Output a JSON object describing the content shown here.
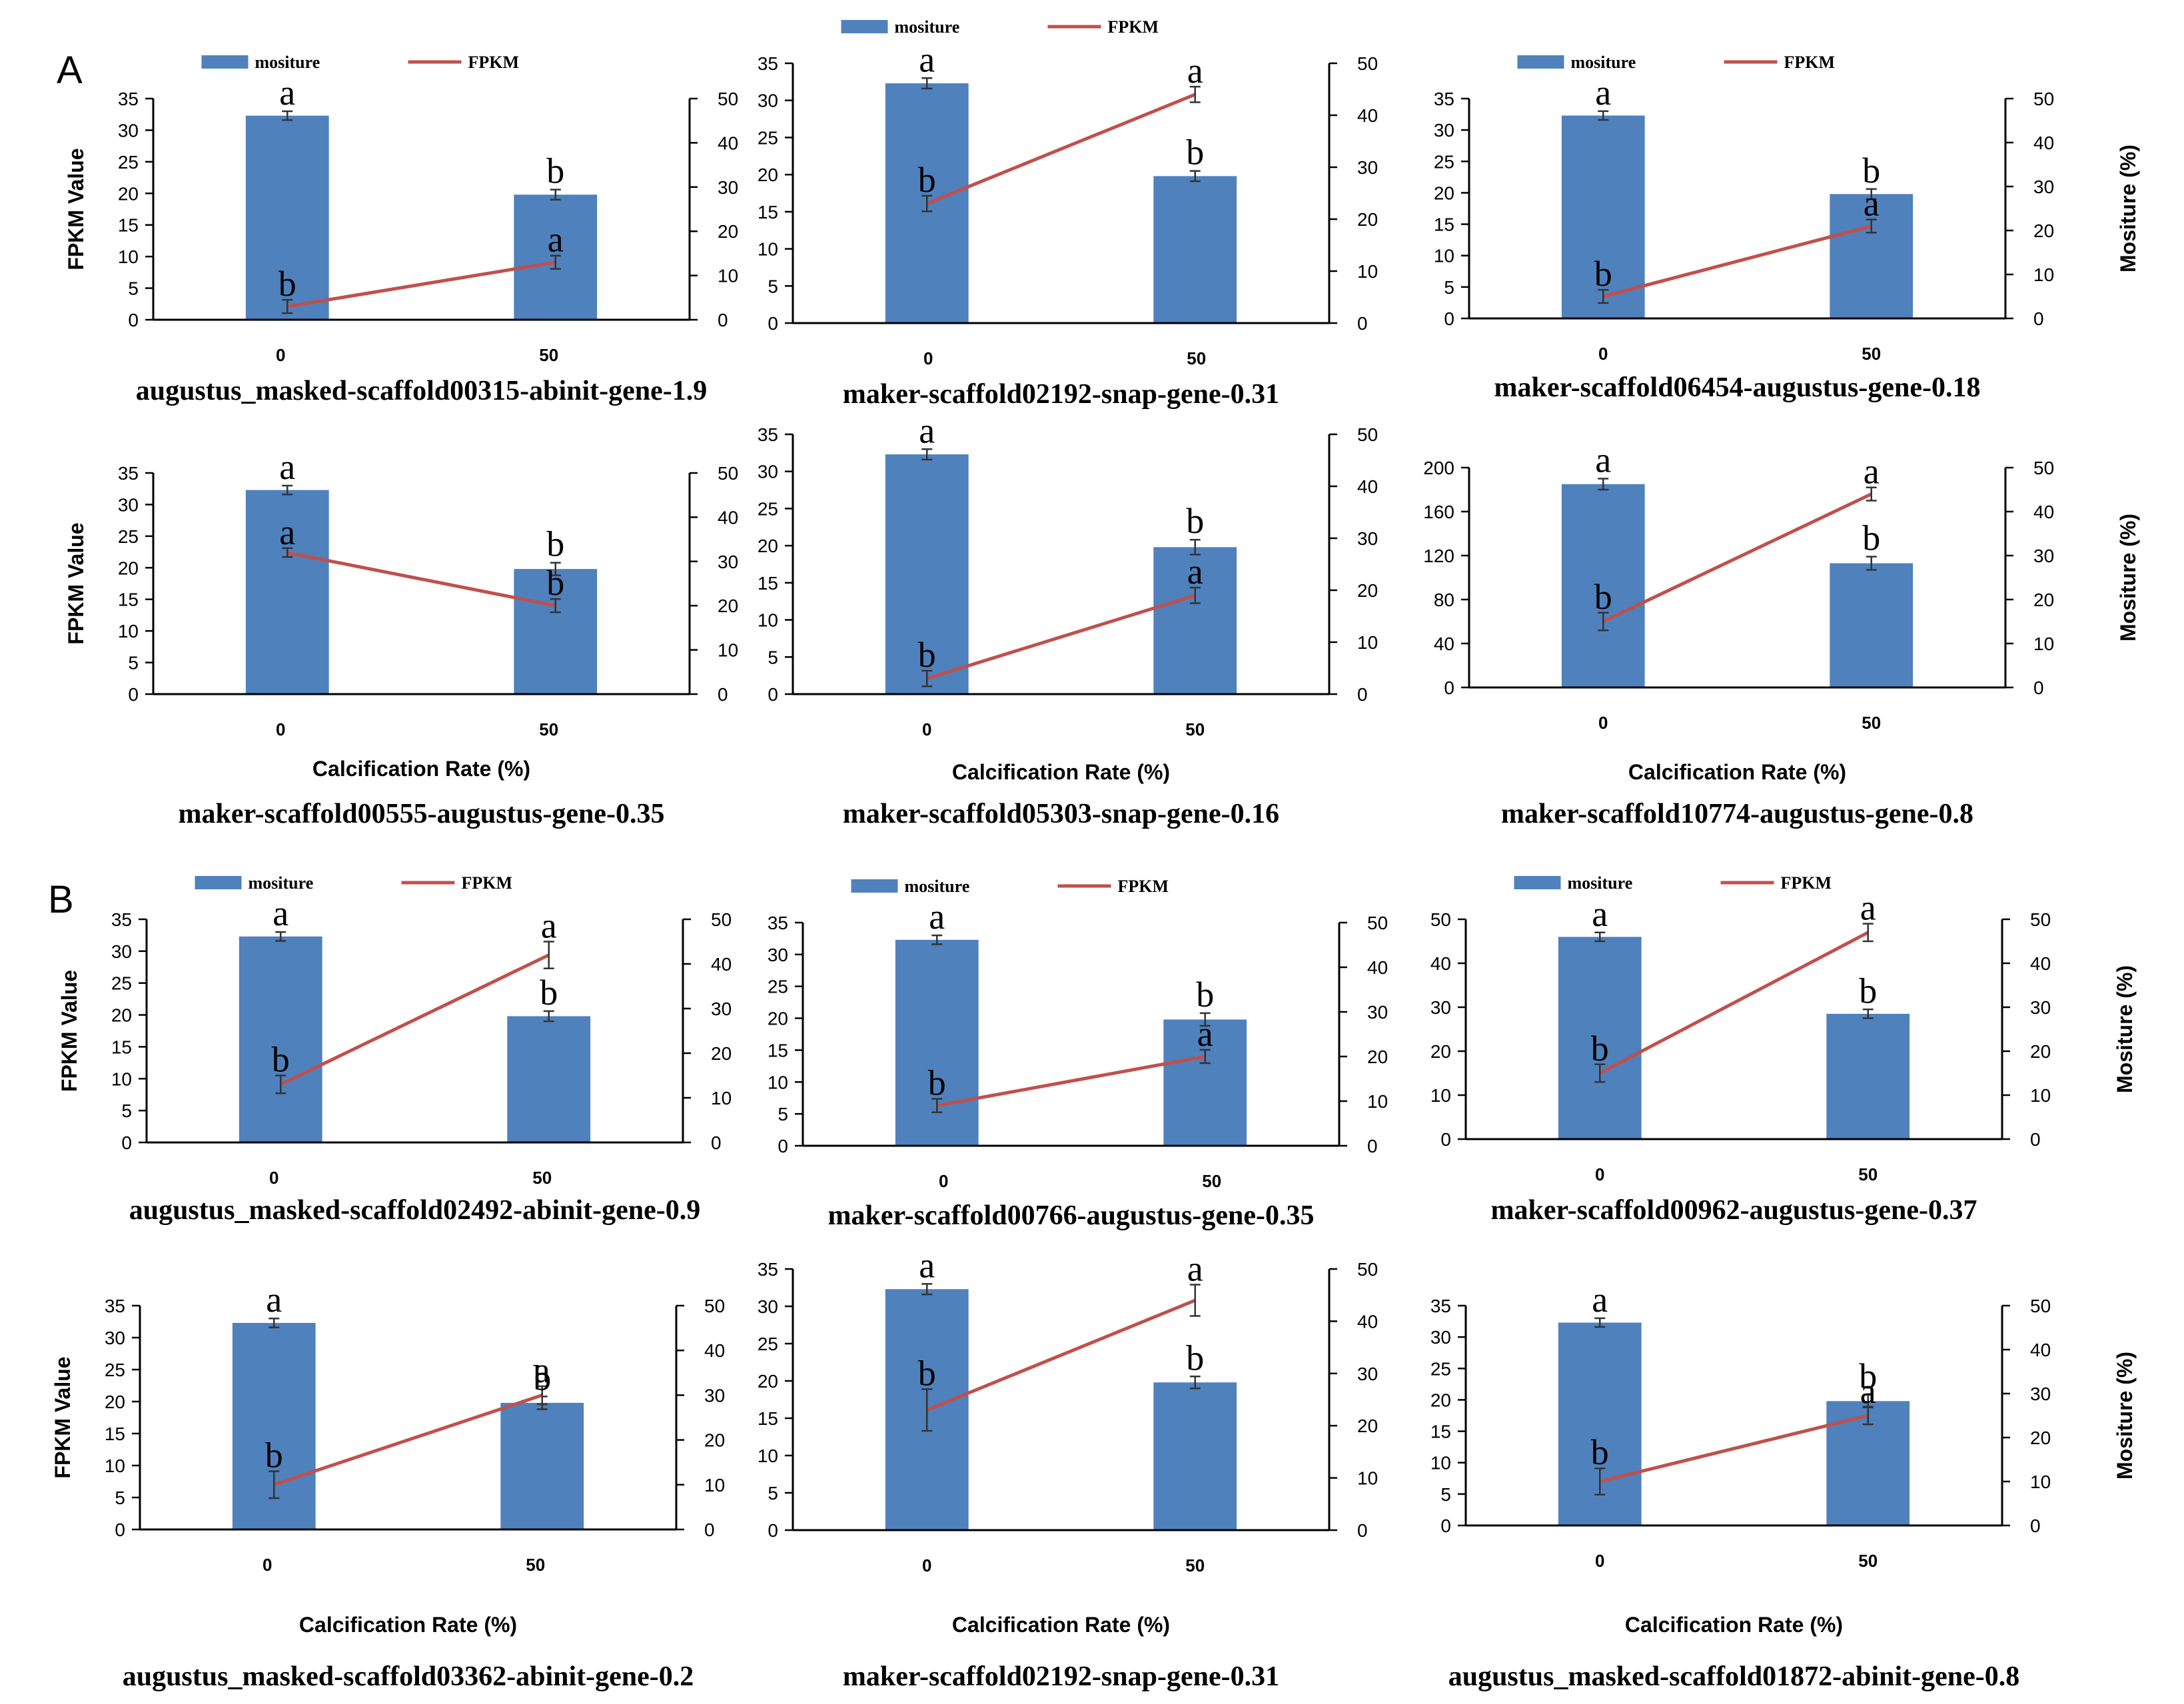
{
  "figure": {
    "section_labels": [
      "A",
      "B"
    ],
    "legend": {
      "bar_label": "mositure",
      "line_label": "FPKM"
    },
    "x_axis_title": "Calcification Rate (%)",
    "y_left_title": "FPKM Value",
    "y_right_title": "Mositure (%)",
    "colors": {
      "bar": "#4f81bd",
      "line": "#c0504d",
      "axis": "#000000"
    }
  },
  "chart_data": [
    {
      "type": "bar+line",
      "section": "A",
      "title": "augustus_masked-scaffold00315-abinit-gene-1.9",
      "categories": [
        "0",
        "50"
      ],
      "series": [
        {
          "name": "mositure",
          "values": [
            32.3,
            19.8
          ],
          "errors": [
            0.7,
            0.8
          ],
          "letters": [
            "a",
            "b"
          ],
          "axis": "left"
        },
        {
          "name": "FPKM",
          "values": [
            3,
            13
          ],
          "errors": [
            1.5,
            1.5
          ],
          "letters": [
            "b",
            "a"
          ],
          "axis": "right"
        }
      ],
      "ylim_left": [
        0,
        35
      ],
      "ylim_right": [
        0,
        50
      ],
      "yticks_left": [
        0,
        5,
        10,
        15,
        20,
        25,
        30,
        35
      ],
      "yticks_right": [
        0,
        10,
        20,
        30,
        40,
        50
      ],
      "show_legend": true,
      "show_xlabel": false,
      "show_left_title": true,
      "show_right_title": false
    },
    {
      "type": "bar+line",
      "section": "A",
      "title": "maker-scaffold02192-snap-gene-0.31",
      "categories": [
        "0",
        "50"
      ],
      "series": [
        {
          "name": "mositure",
          "values": [
            32.3,
            19.8
          ],
          "errors": [
            0.7,
            0.7
          ],
          "letters": [
            "a",
            "b"
          ],
          "axis": "left"
        },
        {
          "name": "FPKM",
          "values": [
            23,
            44
          ],
          "errors": [
            1.5,
            1.5
          ],
          "letters": [
            "b",
            "a"
          ],
          "axis": "right"
        }
      ],
      "ylim_left": [
        0,
        35
      ],
      "ylim_right": [
        0,
        50
      ],
      "yticks_left": [
        0,
        5,
        10,
        15,
        20,
        25,
        30,
        35
      ],
      "yticks_right": [
        0,
        10,
        20,
        30,
        40,
        50
      ],
      "show_legend": true,
      "show_xlabel": false,
      "show_left_title": false,
      "show_right_title": false
    },
    {
      "type": "bar+line",
      "section": "A",
      "title": "maker-scaffold06454-augustus-gene-0.18",
      "categories": [
        "0",
        "50"
      ],
      "series": [
        {
          "name": "mositure",
          "values": [
            32.3,
            19.8
          ],
          "errors": [
            0.7,
            0.8
          ],
          "letters": [
            "a",
            "b"
          ],
          "axis": "left"
        },
        {
          "name": "FPKM",
          "values": [
            5,
            21
          ],
          "errors": [
            1.5,
            1.5
          ],
          "letters": [
            "b",
            "a"
          ],
          "axis": "right"
        }
      ],
      "ylim_left": [
        0,
        35
      ],
      "ylim_right": [
        0,
        50
      ],
      "yticks_left": [
        0,
        5,
        10,
        15,
        20,
        25,
        30,
        35
      ],
      "yticks_right": [
        0,
        10,
        20,
        30,
        40,
        50
      ],
      "show_legend": true,
      "show_xlabel": false,
      "show_left_title": false,
      "show_right_title": true
    },
    {
      "type": "bar+line",
      "section": "A",
      "title": "maker-scaffold00555-augustus-gene-0.35",
      "categories": [
        "0",
        "50"
      ],
      "series": [
        {
          "name": "mositure",
          "values": [
            32.3,
            19.8
          ],
          "errors": [
            0.7,
            1
          ],
          "letters": [
            "a",
            "b"
          ],
          "axis": "left"
        },
        {
          "name": "FPKM",
          "values": [
            32,
            20
          ],
          "errors": [
            1,
            1.5
          ],
          "letters": [
            "a",
            "b"
          ],
          "axis": "right"
        }
      ],
      "ylim_left": [
        0,
        35
      ],
      "ylim_right": [
        0,
        50
      ],
      "yticks_left": [
        0,
        5,
        10,
        15,
        20,
        25,
        30,
        35
      ],
      "yticks_right": [
        0,
        10,
        20,
        30,
        40,
        50
      ],
      "show_legend": false,
      "show_xlabel": true,
      "show_left_title": true,
      "show_right_title": false
    },
    {
      "type": "bar+line",
      "section": "A",
      "title": "maker-scaffold05303-snap-gene-0.16",
      "categories": [
        "0",
        "50"
      ],
      "series": [
        {
          "name": "mositure",
          "values": [
            32.3,
            19.8
          ],
          "errors": [
            0.7,
            1
          ],
          "letters": [
            "a",
            "b"
          ],
          "axis": "left"
        },
        {
          "name": "FPKM",
          "values": [
            3,
            19
          ],
          "errors": [
            1.5,
            1.5
          ],
          "letters": [
            "b",
            "a"
          ],
          "axis": "right"
        }
      ],
      "ylim_left": [
        0,
        35
      ],
      "ylim_right": [
        0,
        50
      ],
      "yticks_left": [
        0,
        5,
        10,
        15,
        20,
        25,
        30,
        35
      ],
      "yticks_right": [
        0,
        10,
        20,
        30,
        40,
        50
      ],
      "show_legend": false,
      "show_xlabel": true,
      "show_left_title": false,
      "show_right_title": false
    },
    {
      "type": "bar+line",
      "section": "A",
      "title": "maker-scaffold10774-augustus-gene-0.8",
      "categories": [
        "0",
        "50"
      ],
      "series": [
        {
          "name": "mositure",
          "values": [
            185,
            113
          ],
          "errors": [
            5,
            6
          ],
          "letters": [
            "a",
            "b"
          ],
          "axis": "left"
        },
        {
          "name": "FPKM",
          "values": [
            15,
            44
          ],
          "errors": [
            2,
            1.5
          ],
          "letters": [
            "b",
            "a"
          ],
          "axis": "right"
        }
      ],
      "ylim_left": [
        0,
        200
      ],
      "ylim_right": [
        0,
        50
      ],
      "yticks_left": [
        0,
        40,
        80,
        120,
        160,
        200
      ],
      "yticks_right": [
        0,
        10,
        20,
        30,
        40,
        50
      ],
      "show_legend": false,
      "show_xlabel": true,
      "show_left_title": false,
      "show_right_title": true
    },
    {
      "type": "bar+line",
      "section": "B",
      "title": "augustus_masked-scaffold02492-abinit-gene-0.9",
      "categories": [
        "0",
        "50"
      ],
      "series": [
        {
          "name": "mositure",
          "values": [
            32.3,
            19.8
          ],
          "errors": [
            0.7,
            0.8
          ],
          "letters": [
            "a",
            "b"
          ],
          "axis": "left"
        },
        {
          "name": "FPKM",
          "values": [
            13,
            42
          ],
          "errors": [
            2,
            3
          ],
          "letters": [
            "b",
            "a"
          ],
          "axis": "right"
        }
      ],
      "ylim_left": [
        0,
        35
      ],
      "ylim_right": [
        0,
        50
      ],
      "yticks_left": [
        0,
        5,
        10,
        15,
        20,
        25,
        30,
        35
      ],
      "yticks_right": [
        0,
        10,
        20,
        30,
        40,
        50
      ],
      "show_legend": true,
      "show_xlabel": false,
      "show_left_title": true,
      "show_right_title": false
    },
    {
      "type": "bar+line",
      "section": "B",
      "title": "maker-scaffold00766-augustus-gene-0.35",
      "categories": [
        "0",
        "50"
      ],
      "series": [
        {
          "name": "mositure",
          "values": [
            32.3,
            19.8
          ],
          "errors": [
            0.7,
            1
          ],
          "letters": [
            "a",
            "b"
          ],
          "axis": "left"
        },
        {
          "name": "FPKM",
          "values": [
            9,
            20
          ],
          "errors": [
            1.5,
            1.5
          ],
          "letters": [
            "b",
            "a"
          ],
          "axis": "right"
        }
      ],
      "ylim_left": [
        0,
        35
      ],
      "ylim_right": [
        0,
        50
      ],
      "yticks_left": [
        0,
        5,
        10,
        15,
        20,
        25,
        30,
        35
      ],
      "yticks_right": [
        0,
        10,
        20,
        30,
        40,
        50
      ],
      "show_legend": true,
      "show_xlabel": false,
      "show_left_title": false,
      "show_right_title": false
    },
    {
      "type": "bar+line",
      "section": "B",
      "title": "maker-scaffold00962-augustus-gene-0.37",
      "categories": [
        "0",
        "50"
      ],
      "series": [
        {
          "name": "mositure",
          "values": [
            46,
            28.5
          ],
          "errors": [
            1,
            1
          ],
          "letters": [
            "a",
            "b"
          ],
          "axis": "left"
        },
        {
          "name": "FPKM",
          "values": [
            15,
            47
          ],
          "errors": [
            2,
            2
          ],
          "letters": [
            "b",
            "a"
          ],
          "axis": "right"
        }
      ],
      "ylim_left": [
        0,
        50
      ],
      "ylim_right": [
        0,
        50
      ],
      "yticks_left": [
        0,
        10,
        20,
        30,
        40,
        50
      ],
      "yticks_right": [
        0,
        10,
        20,
        30,
        40,
        50
      ],
      "show_legend": true,
      "show_xlabel": false,
      "show_left_title": false,
      "show_right_title": true
    },
    {
      "type": "bar+line",
      "section": "B",
      "title": "augustus_masked-scaffold03362-abinit-gene-0.2",
      "categories": [
        "0",
        "50"
      ],
      "series": [
        {
          "name": "mositure",
          "values": [
            32.3,
            19.8
          ],
          "errors": [
            0.7,
            1
          ],
          "letters": [
            "a",
            "b"
          ],
          "axis": "left"
        },
        {
          "name": "FPKM",
          "values": [
            10,
            30
          ],
          "errors": [
            3,
            2
          ],
          "letters": [
            "b",
            "a"
          ],
          "axis": "right"
        }
      ],
      "ylim_left": [
        0,
        35
      ],
      "ylim_right": [
        0,
        50
      ],
      "yticks_left": [
        0,
        5,
        10,
        15,
        20,
        25,
        30,
        35
      ],
      "yticks_right": [
        0,
        10,
        20,
        30,
        40,
        50
      ],
      "show_legend": false,
      "show_xlabel": true,
      "show_left_title": true,
      "show_right_title": false
    },
    {
      "type": "bar+line",
      "section": "B",
      "title": "maker-scaffold02192-snap-gene-0.31",
      "categories": [
        "0",
        "50"
      ],
      "series": [
        {
          "name": "mositure",
          "values": [
            32.3,
            19.8
          ],
          "errors": [
            0.7,
            0.8
          ],
          "letters": [
            "a",
            "b"
          ],
          "axis": "left"
        },
        {
          "name": "FPKM",
          "values": [
            23,
            44
          ],
          "errors": [
            4,
            3
          ],
          "letters": [
            "b",
            "a"
          ],
          "axis": "right"
        }
      ],
      "ylim_left": [
        0,
        35
      ],
      "ylim_right": [
        0,
        50
      ],
      "yticks_left": [
        0,
        5,
        10,
        15,
        20,
        25,
        30,
        35
      ],
      "yticks_right": [
        0,
        10,
        20,
        30,
        40,
        50
      ],
      "show_legend": false,
      "show_xlabel": true,
      "show_left_title": false,
      "show_right_title": false
    },
    {
      "type": "bar+line",
      "section": "B",
      "title": "augustus_masked-scaffold01872-abinit-gene-0.8",
      "categories": [
        "0",
        "50"
      ],
      "series": [
        {
          "name": "mositure",
          "values": [
            32.3,
            19.8
          ],
          "errors": [
            0.7,
            1
          ],
          "letters": [
            "a",
            "b"
          ],
          "axis": "left"
        },
        {
          "name": "FPKM",
          "values": [
            10,
            25
          ],
          "errors": [
            3,
            2
          ],
          "letters": [
            "b",
            "a"
          ],
          "axis": "right"
        }
      ],
      "ylim_left": [
        0,
        35
      ],
      "ylim_right": [
        0,
        50
      ],
      "yticks_left": [
        0,
        5,
        10,
        15,
        20,
        25,
        30,
        35
      ],
      "yticks_right": [
        0,
        10,
        20,
        30,
        40,
        50
      ],
      "show_legend": false,
      "show_xlabel": true,
      "show_left_title": false,
      "show_right_title": true
    }
  ]
}
